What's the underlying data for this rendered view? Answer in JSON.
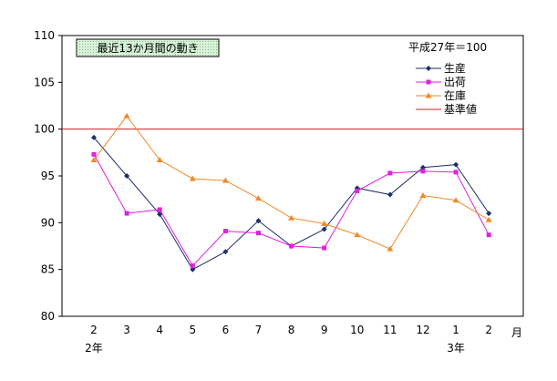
{
  "chart_data": {
    "type": "line",
    "title": "最近13か月間の動き",
    "base_note": "平成27年＝100",
    "x_unit": "月",
    "categories": [
      "2",
      "3",
      "4",
      "5",
      "6",
      "7",
      "8",
      "9",
      "10",
      "11",
      "12",
      "1",
      "2"
    ],
    "year_markers": [
      {
        "label": "2年",
        "category_index": 0
      },
      {
        "label": "3年",
        "category_index": 11
      }
    ],
    "ylim": [
      80,
      110
    ],
    "yticks": [
      80,
      85,
      90,
      95,
      100,
      105,
      110
    ],
    "grid": false,
    "legend_position": "top-right",
    "series": [
      {
        "name": "生産",
        "color": "#1f2f6e",
        "marker": "diamond",
        "values": [
          99.1,
          95.0,
          90.9,
          85.0,
          86.9,
          90.2,
          87.5,
          89.3,
          93.7,
          93.0,
          95.9,
          96.2,
          91.0
        ]
      },
      {
        "name": "出荷",
        "color": "#e020e0",
        "marker": "square",
        "values": [
          97.3,
          91.0,
          91.4,
          85.4,
          89.1,
          88.9,
          87.5,
          87.3,
          93.4,
          95.3,
          95.5,
          95.4,
          88.7
        ]
      },
      {
        "name": "在庫",
        "color": "#f08a24",
        "marker": "triangle",
        "values": [
          96.7,
          101.4,
          96.7,
          94.7,
          94.5,
          92.6,
          90.5,
          89.9,
          88.7,
          87.2,
          92.9,
          92.4,
          90.3
        ]
      }
    ],
    "reference_line": {
      "name": "基準値",
      "value": 100,
      "color": "#d02020"
    }
  }
}
